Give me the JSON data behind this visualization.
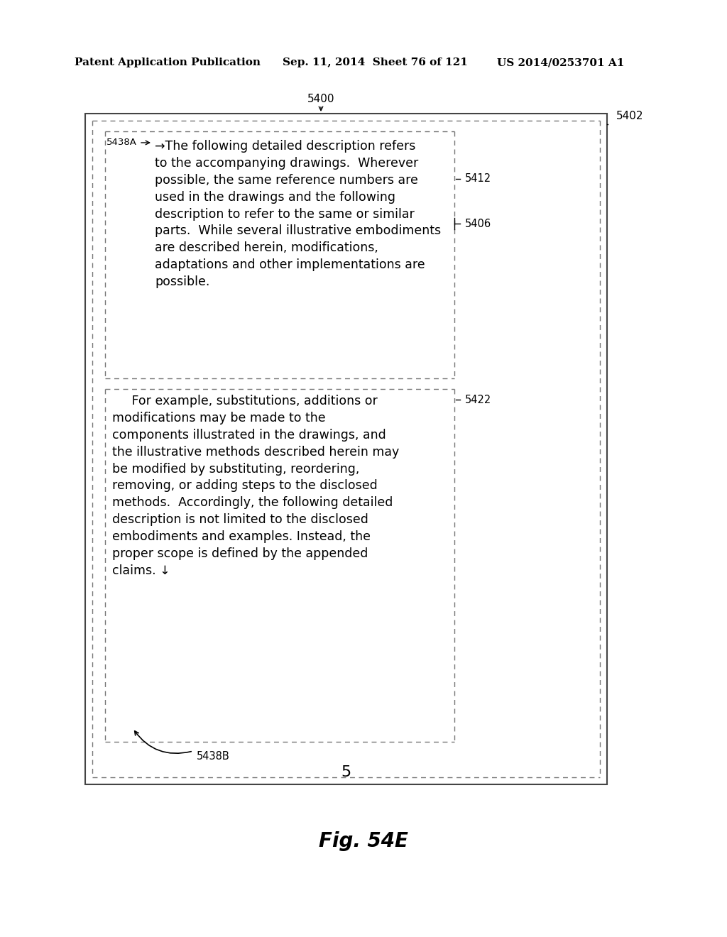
{
  "bg_color": "#ffffff",
  "text_color": "#000000",
  "header_left": "Patent Application Publication",
  "header_mid": "Sep. 11, 2014  Sheet 76 of 121",
  "header_right": "US 2014/0253701 A1",
  "fig_label": "Fig. 54E",
  "lbl_5400": "5400",
  "lbl_5402": "5402",
  "lbl_5406": "5406",
  "lbl_5412": "5412",
  "lbl_5422": "5422",
  "lbl_5438A": "5438A",
  "lbl_5438B": "5438B",
  "lbl_5": "5",
  "box1_lines": [
    "→The following detailed description refers",
    "to the accompanying drawings.  Wherever",
    "possible, the same reference numbers are",
    "used in the drawings and the following",
    "description to refer to the same or similar",
    "parts.  While several illustrative embodiments",
    "are described herein, modifications,",
    "adaptations and other implementations are",
    "possible."
  ],
  "box2_lines": [
    "     For example, substitutions, additions or",
    "modifications may be made to the",
    "components illustrated in the drawings, and",
    "the illustrative methods described herein may",
    "be modified by substituting, reordering,",
    "removing, or adding steps to the disclosed",
    "methods.  Accordingly, the following detailed",
    "description is not limited to the disclosed",
    "embodiments and examples. Instead, the",
    "proper scope is defined by the appended",
    "claims. ↓"
  ]
}
